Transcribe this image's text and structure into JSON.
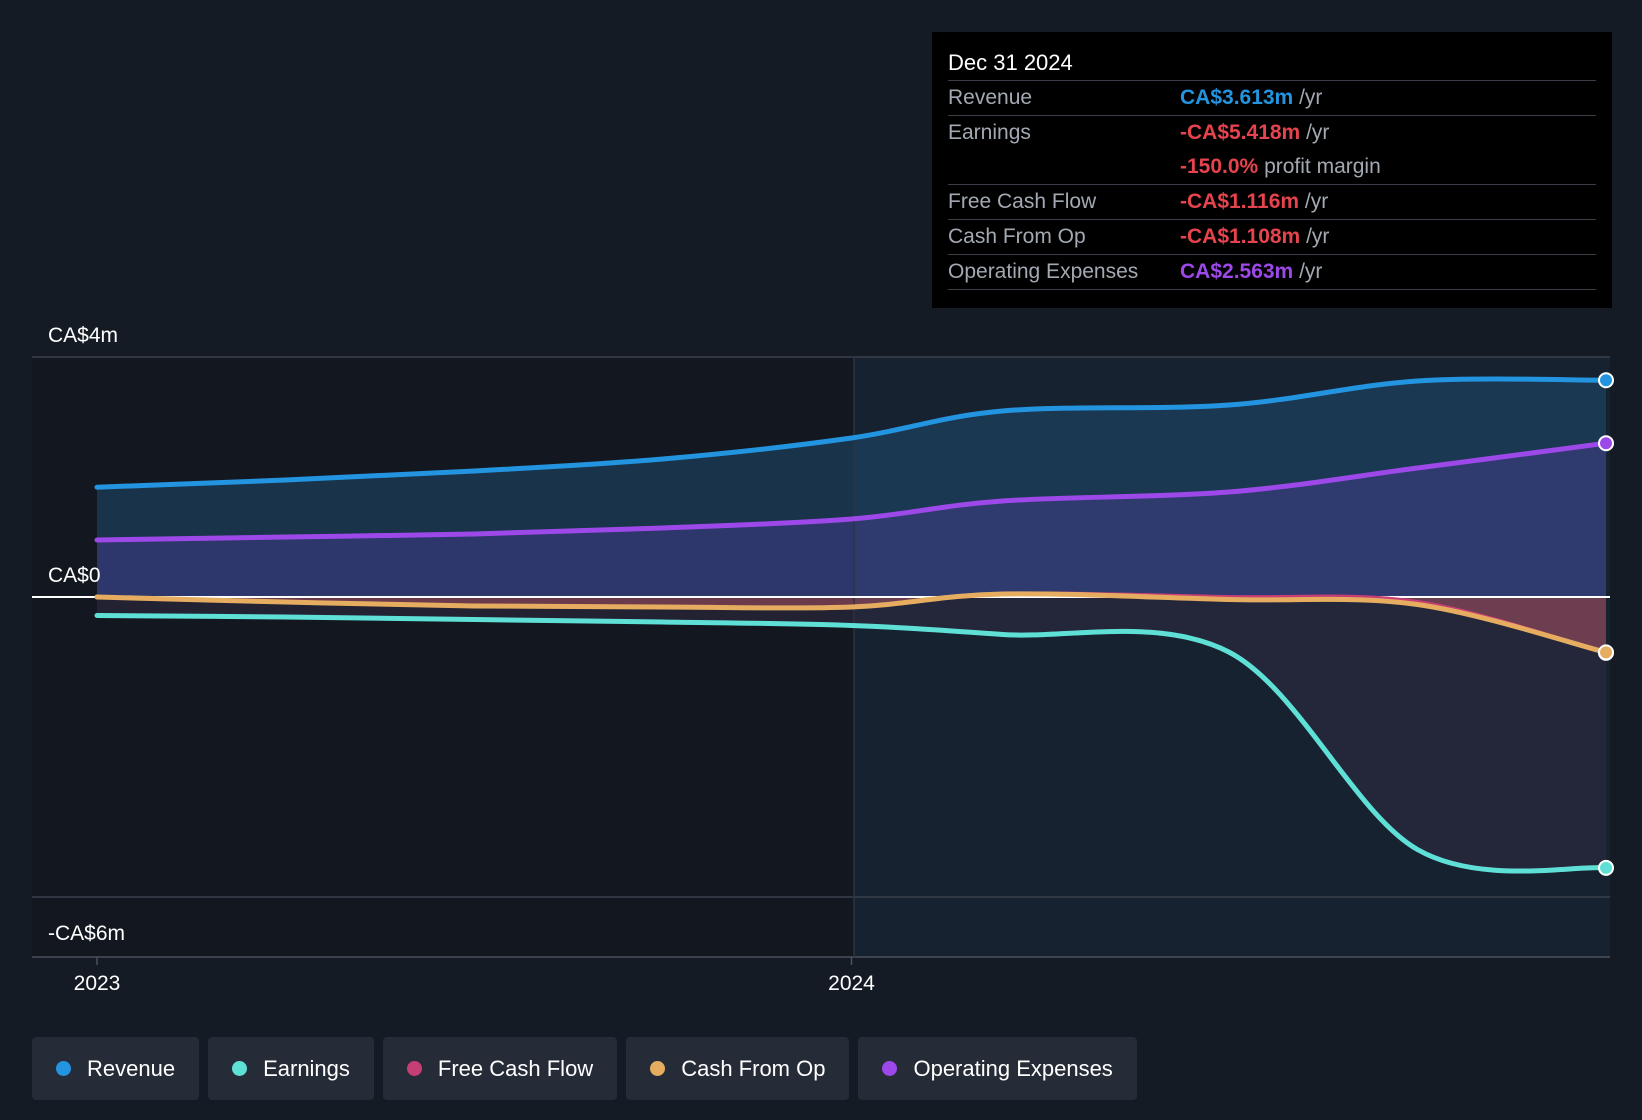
{
  "chart_data": {
    "type": "area",
    "x": [
      2023.0,
      2023.25,
      2023.5,
      2023.75,
      2024.0,
      2024.2,
      2024.5,
      2024.75,
      2025.0
    ],
    "xticks": [
      "2023",
      "2024"
    ],
    "yticks": [
      "CA$4m",
      "CA$0",
      "-CA$6m"
    ],
    "ylim": [
      -6,
      4
    ],
    "series": [
      {
        "name": "Revenue",
        "color": "#2394df",
        "values": [
          1.83,
          1.95,
          2.1,
          2.3,
          2.65,
          3.1,
          3.2,
          3.6,
          3.613
        ]
      },
      {
        "name": "Earnings",
        "color": "#5fe0d6",
        "values": [
          -0.37,
          -0.4,
          -0.45,
          -0.5,
          -0.57,
          -0.75,
          -1.1,
          -5.05,
          -5.418
        ]
      },
      {
        "name": "Free Cash Flow",
        "color": "#c73e74",
        "values": [
          -0.0,
          -0.1,
          -0.18,
          -0.2,
          -0.2,
          0.05,
          0.0,
          -0.1,
          -1.116
        ]
      },
      {
        "name": "Cash From Op",
        "color": "#e6ad61",
        "values": [
          -0.0,
          -0.1,
          -0.18,
          -0.2,
          -0.2,
          0.05,
          -0.05,
          -0.15,
          -1.108
        ]
      },
      {
        "name": "Operating Expenses",
        "color": "#9d48e8",
        "values": [
          0.95,
          1.0,
          1.05,
          1.15,
          1.3,
          1.6,
          1.75,
          2.15,
          2.563
        ]
      }
    ]
  },
  "tooltip": {
    "date": "Dec 31 2024",
    "rows": [
      {
        "label": "Revenue",
        "value": "CA$3.613m",
        "unit": "/yr",
        "color": "#2394df"
      },
      {
        "label": "Earnings",
        "value": "-CA$5.418m",
        "unit": "/yr",
        "color": "#e5434d",
        "extra_value": "-150.0%",
        "extra_unit": "profit margin"
      },
      {
        "label": "Free Cash Flow",
        "value": "-CA$1.116m",
        "unit": "/yr",
        "color": "#e5434d"
      },
      {
        "label": "Cash From Op",
        "value": "-CA$1.108m",
        "unit": "/yr",
        "color": "#e5434d"
      },
      {
        "label": "Operating Expenses",
        "value": "CA$2.563m",
        "unit": "/yr",
        "color": "#9d48e8"
      }
    ]
  },
  "legend": [
    {
      "label": "Revenue",
      "color": "#2394df"
    },
    {
      "label": "Earnings",
      "color": "#5fe0d6"
    },
    {
      "label": "Free Cash Flow",
      "color": "#c73e74"
    },
    {
      "label": "Cash From Op",
      "color": "#e6ad61"
    },
    {
      "label": "Operating Expenses",
      "color": "#9d48e8"
    }
  ]
}
